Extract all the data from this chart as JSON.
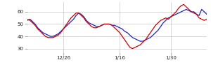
{
  "blue_y": [
    53,
    54,
    52,
    50,
    47,
    45,
    43,
    42,
    41,
    40,
    40,
    41,
    42,
    44,
    46,
    48,
    50,
    52,
    54,
    57,
    59,
    58,
    56,
    53,
    51,
    50,
    49,
    48,
    48,
    49,
    50,
    50,
    50,
    49,
    49,
    48,
    47,
    46,
    44,
    43,
    41,
    39,
    38,
    37,
    36,
    36,
    37,
    38,
    39,
    41,
    43,
    45,
    48,
    51,
    53,
    55,
    56,
    57,
    58,
    59,
    60,
    61,
    62,
    61,
    60,
    60,
    58,
    57,
    62,
    60,
    58
  ],
  "red_y": [
    54,
    53,
    51,
    49,
    46,
    44,
    42,
    40,
    39,
    39,
    39,
    40,
    41,
    43,
    46,
    49,
    52,
    55,
    57,
    59,
    59,
    57,
    55,
    52,
    50,
    48,
    47,
    47,
    48,
    49,
    50,
    50,
    50,
    49,
    47,
    45,
    43,
    40,
    37,
    34,
    31,
    30,
    31,
    32,
    33,
    35,
    37,
    40,
    43,
    46,
    49,
    51,
    53,
    54,
    55,
    54,
    56,
    58,
    60,
    63,
    65,
    66,
    64,
    62,
    60,
    59,
    58,
    55,
    54,
    53,
    54
  ],
  "n_points": 71,
  "xtick_positions": [
    14,
    36,
    56
  ],
  "xtick_labels": [
    "12/26",
    "1/16",
    "1/30"
  ],
  "yticks": [
    30,
    40,
    50,
    60
  ],
  "ylim": [
    27,
    68
  ],
  "xlim": [
    0,
    70
  ],
  "blue_color": "#2222bb",
  "red_color": "#cc0000",
  "bg_color": "#ffffff",
  "linewidth": 0.9
}
